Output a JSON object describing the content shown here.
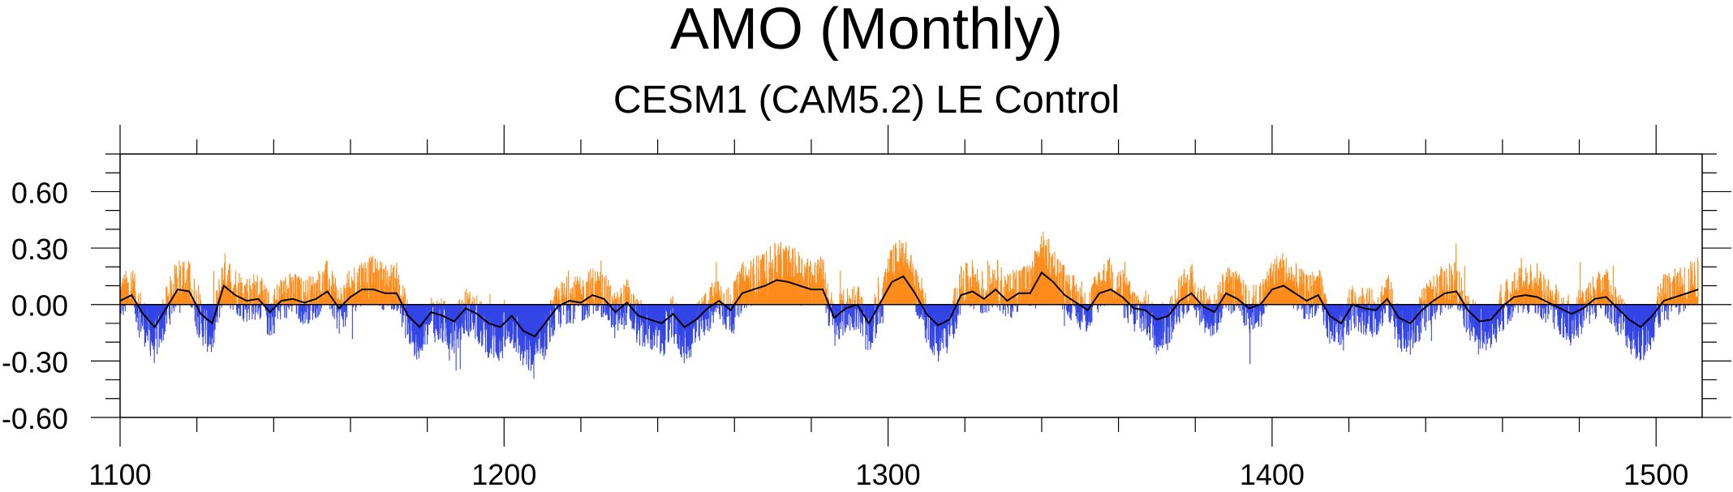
{
  "chart_data": {
    "type": "bar",
    "title": "AMO (Monthly)",
    "subtitle": "CESM1 (CAM5.2) LE Control",
    "xlabel": "",
    "ylabel": "",
    "xlim": [
      1100,
      1512
    ],
    "ylim": [
      -0.6,
      0.8
    ],
    "x_ticks": [
      "1100",
      "1200",
      "1300",
      "1400",
      "1500"
    ],
    "y_ticks": [
      "0.60",
      "0.30",
      "0.00",
      "-0.30",
      "-0.60"
    ],
    "grid": false,
    "legend": "none",
    "colors": {
      "positive": "#ff8c1a",
      "negative": "#3344e6",
      "smoothed": "#000000"
    },
    "series": [
      {
        "name": "",
        "kind": "smoothed line",
        "x": [
          1100,
          1103,
          1106,
          1109,
          1112,
          1115,
          1118,
          1121,
          1124,
          1127,
          1130,
          1133,
          1136,
          1139,
          1142,
          1145,
          1148,
          1151,
          1154,
          1157,
          1160,
          1163,
          1166,
          1169,
          1172,
          1175,
          1178,
          1181,
          1184,
          1187,
          1190,
          1193,
          1196,
          1199,
          1202,
          1205,
          1208,
          1211,
          1214,
          1217,
          1220,
          1223,
          1226,
          1229,
          1232,
          1235,
          1238,
          1241,
          1244,
          1247,
          1250,
          1253,
          1256,
          1259,
          1262,
          1265,
          1268,
          1271,
          1274,
          1277,
          1280,
          1283,
          1286,
          1289,
          1292,
          1295,
          1298,
          1301,
          1304,
          1307,
          1310,
          1313,
          1316,
          1319,
          1322,
          1325,
          1328,
          1331,
          1334,
          1337,
          1340,
          1343,
          1346,
          1349,
          1352,
          1355,
          1358,
          1361,
          1364,
          1367,
          1370,
          1373,
          1376,
          1379,
          1382,
          1385,
          1388,
          1391,
          1394,
          1397,
          1400,
          1403,
          1406,
          1409,
          1412,
          1415,
          1418,
          1421,
          1424,
          1427,
          1430,
          1433,
          1436,
          1439,
          1442,
          1445,
          1448,
          1451,
          1454,
          1457,
          1460,
          1463,
          1466,
          1469,
          1472,
          1475,
          1478,
          1481,
          1484,
          1487,
          1490,
          1493,
          1496,
          1499,
          1502,
          1505,
          1508,
          1511
        ],
        "values": [
          0.02,
          0.05,
          -0.05,
          -0.12,
          -0.02,
          0.08,
          0.07,
          -0.05,
          -0.1,
          0.1,
          0.05,
          0.02,
          0.03,
          -0.04,
          0.02,
          0.03,
          0.01,
          0.03,
          0.07,
          -0.02,
          0.04,
          0.08,
          0.08,
          0.06,
          0.06,
          -0.06,
          -0.12,
          -0.04,
          -0.06,
          -0.09,
          -0.02,
          -0.05,
          -0.1,
          -0.12,
          -0.06,
          -0.14,
          -0.17,
          -0.09,
          -0.01,
          0.02,
          0.01,
          0.05,
          0.03,
          -0.04,
          0.01,
          -0.06,
          -0.08,
          -0.1,
          -0.05,
          -0.12,
          -0.08,
          -0.02,
          0.02,
          -0.03,
          0.06,
          0.08,
          0.1,
          0.13,
          0.12,
          0.1,
          0.08,
          0.08,
          -0.07,
          -0.02,
          0.0,
          -0.1,
          0.01,
          0.12,
          0.15,
          0.06,
          -0.05,
          -0.11,
          -0.08,
          0.05,
          0.07,
          0.03,
          0.08,
          0.02,
          0.06,
          0.06,
          0.17,
          0.12,
          0.05,
          0.01,
          -0.03,
          0.06,
          0.08,
          0.04,
          -0.02,
          -0.03,
          -0.08,
          -0.06,
          0.02,
          0.06,
          -0.01,
          -0.04,
          0.06,
          0.03,
          -0.02,
          0.0,
          0.08,
          0.1,
          0.06,
          0.02,
          0.05,
          -0.06,
          -0.1,
          0.0,
          -0.02,
          -0.03,
          0.03,
          -0.07,
          -0.1,
          -0.03,
          0.02,
          0.06,
          0.07,
          -0.03,
          -0.09,
          -0.08,
          -0.01,
          0.04,
          0.05,
          0.04,
          0.01,
          -0.02,
          -0.05,
          -0.02,
          0.03,
          0.04,
          -0.02,
          -0.08,
          -0.12,
          -0.06,
          0.02,
          0.04,
          0.06,
          0.08
        ]
      }
    ]
  }
}
